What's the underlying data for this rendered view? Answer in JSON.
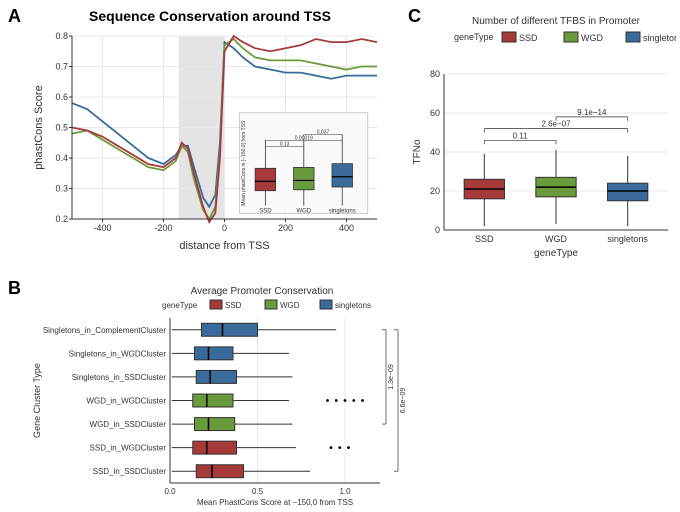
{
  "colors": {
    "ssd": "#a63a3a",
    "wgd": "#6b9a3d",
    "singletons": "#3a6b9a",
    "grid": "#e8e8e8",
    "axis": "#333333",
    "shade": "#d8d8d8",
    "bg": "#ffffff"
  },
  "panelA": {
    "label": "A",
    "title": "Sequence Conservation around TSS",
    "title_fontsize": 14,
    "xlabel": "distance from TSS",
    "ylabel": "phastCons Score",
    "xlim": [
      -500,
      500
    ],
    "ylim": [
      0.2,
      0.8
    ],
    "xticks": [
      -400,
      -200,
      0,
      200,
      400
    ],
    "yticks": [
      0.2,
      0.3,
      0.4,
      0.5,
      0.6,
      0.7,
      0.8
    ],
    "shade_x": [
      -150,
      0
    ],
    "lines": {
      "ssd": [
        [
          -500,
          0.5
        ],
        [
          -450,
          0.49
        ],
        [
          -400,
          0.47
        ],
        [
          -350,
          0.44
        ],
        [
          -300,
          0.41
        ],
        [
          -250,
          0.38
        ],
        [
          -200,
          0.37
        ],
        [
          -160,
          0.4
        ],
        [
          -140,
          0.45
        ],
        [
          -120,
          0.43
        ],
        [
          -100,
          0.35
        ],
        [
          -70,
          0.24
        ],
        [
          -50,
          0.19
        ],
        [
          -30,
          0.22
        ],
        [
          -15,
          0.4
        ],
        [
          0,
          0.75
        ],
        [
          30,
          0.8
        ],
        [
          60,
          0.78
        ],
        [
          100,
          0.76
        ],
        [
          150,
          0.75
        ],
        [
          200,
          0.76
        ],
        [
          250,
          0.77
        ],
        [
          300,
          0.79
        ],
        [
          350,
          0.78
        ],
        [
          400,
          0.78
        ],
        [
          450,
          0.79
        ],
        [
          500,
          0.78
        ]
      ],
      "wgd": [
        [
          -500,
          0.48
        ],
        [
          -450,
          0.49
        ],
        [
          -400,
          0.46
        ],
        [
          -350,
          0.43
        ],
        [
          -300,
          0.4
        ],
        [
          -250,
          0.37
        ],
        [
          -200,
          0.36
        ],
        [
          -160,
          0.39
        ],
        [
          -140,
          0.44
        ],
        [
          -120,
          0.42
        ],
        [
          -100,
          0.33
        ],
        [
          -70,
          0.23
        ],
        [
          -50,
          0.2
        ],
        [
          -30,
          0.24
        ],
        [
          -15,
          0.42
        ],
        [
          0,
          0.77
        ],
        [
          30,
          0.79
        ],
        [
          60,
          0.76
        ],
        [
          100,
          0.73
        ],
        [
          150,
          0.72
        ],
        [
          200,
          0.72
        ],
        [
          250,
          0.72
        ],
        [
          300,
          0.71
        ],
        [
          350,
          0.7
        ],
        [
          400,
          0.69
        ],
        [
          450,
          0.7
        ],
        [
          500,
          0.7
        ]
      ],
      "singletons": [
        [
          -500,
          0.58
        ],
        [
          -450,
          0.56
        ],
        [
          -400,
          0.52
        ],
        [
          -350,
          0.48
        ],
        [
          -300,
          0.44
        ],
        [
          -250,
          0.4
        ],
        [
          -200,
          0.38
        ],
        [
          -160,
          0.41
        ],
        [
          -140,
          0.44
        ],
        [
          -120,
          0.44
        ],
        [
          -100,
          0.37
        ],
        [
          -70,
          0.27
        ],
        [
          -50,
          0.24
        ],
        [
          -30,
          0.28
        ],
        [
          -15,
          0.45
        ],
        [
          0,
          0.78
        ],
        [
          30,
          0.76
        ],
        [
          60,
          0.73
        ],
        [
          100,
          0.7
        ],
        [
          150,
          0.69
        ],
        [
          200,
          0.68
        ],
        [
          250,
          0.68
        ],
        [
          300,
          0.67
        ],
        [
          350,
          0.66
        ],
        [
          400,
          0.67
        ],
        [
          450,
          0.67
        ],
        [
          500,
          0.67
        ]
      ]
    },
    "inset": {
      "ylabel": "Mean phastCons in [−150,0] from TSS",
      "categories": [
        "SSD",
        "WGD",
        "singletons"
      ],
      "ylim": [
        0,
        0.8
      ],
      "boxes": {
        "ssd": {
          "q1": 0.18,
          "med": 0.28,
          "q3": 0.42,
          "lo": 0.02,
          "hi": 0.72
        },
        "wgd": {
          "q1": 0.19,
          "med": 0.29,
          "q3": 0.43,
          "lo": 0.02,
          "hi": 0.74
        },
        "singletons": {
          "q1": 0.22,
          "med": 0.33,
          "q3": 0.47,
          "lo": 0.02,
          "hi": 0.78
        }
      },
      "pvals": [
        {
          "a": 0,
          "b": 1,
          "label": "0.13",
          "y": 0.82
        },
        {
          "a": 0,
          "b": 2,
          "label": "0.00019",
          "y": 0.9
        },
        {
          "a": 1,
          "b": 2,
          "label": "0.037",
          "y": 0.98
        }
      ]
    }
  },
  "panelB": {
    "label": "B",
    "title": "Average Promoter Conservation",
    "title_fontsize": 10,
    "legend_title": "geneType",
    "xlabel": "Mean PhastCons Score at −150,0 from TSS",
    "ylabel": "Gene Cluster Type",
    "xlim": [
      0,
      1.2
    ],
    "xticks": [
      0.0,
      0.5,
      1.0
    ],
    "categories": [
      {
        "name": "Singletons_in_ComplementCluster",
        "color": "singletons",
        "q1": 0.18,
        "med": 0.3,
        "q3": 0.5,
        "lo": 0.01,
        "hi": 0.95
      },
      {
        "name": "Singletons_in_WGDCluster",
        "color": "singletons",
        "q1": 0.14,
        "med": 0.22,
        "q3": 0.36,
        "lo": 0.01,
        "hi": 0.68
      },
      {
        "name": "Singletons_in_SSDCluster",
        "color": "singletons",
        "q1": 0.15,
        "med": 0.23,
        "q3": 0.38,
        "lo": 0.01,
        "hi": 0.7
      },
      {
        "name": "WGD_in_WGDCluster",
        "color": "wgd",
        "q1": 0.13,
        "med": 0.21,
        "q3": 0.36,
        "lo": 0.01,
        "hi": 0.68,
        "outliers": [
          0.9,
          0.95,
          1.0,
          1.05,
          1.1
        ]
      },
      {
        "name": "WGD_in_SSDCluster",
        "color": "wgd",
        "q1": 0.14,
        "med": 0.22,
        "q3": 0.37,
        "lo": 0.01,
        "hi": 0.7
      },
      {
        "name": "SSD_in_WGDCluster",
        "color": "ssd",
        "q1": 0.13,
        "med": 0.21,
        "q3": 0.38,
        "lo": 0.01,
        "hi": 0.72,
        "outliers": [
          0.92,
          0.97,
          1.02
        ]
      },
      {
        "name": "SSD_in_SSDCluster",
        "color": "ssd",
        "q1": 0.15,
        "med": 0.24,
        "q3": 0.42,
        "lo": 0.01,
        "hi": 0.8
      }
    ],
    "pvals": [
      {
        "a": 0,
        "b": 4,
        "label": "1.3e−09"
      },
      {
        "a": 0,
        "b": 6,
        "label": "6.6e−09"
      }
    ]
  },
  "panelC": {
    "label": "C",
    "title": "Number of different TFBS in Promoter",
    "title_fontsize": 10,
    "legend_title": "geneType",
    "xlabel": "geneType",
    "ylabel": "TFNo",
    "ylim": [
      0,
      80
    ],
    "yticks": [
      0,
      20,
      40,
      60,
      80
    ],
    "categories": [
      "SSD",
      "WGD",
      "singletons"
    ],
    "boxes": {
      "ssd": {
        "q1": 16,
        "med": 21,
        "q3": 26,
        "lo": 2,
        "hi": 39
      },
      "wgd": {
        "q1": 17,
        "med": 22,
        "q3": 27,
        "lo": 3,
        "hi": 41
      },
      "singletons": {
        "q1": 15,
        "med": 20,
        "q3": 24,
        "lo": 2,
        "hi": 38
      }
    },
    "pvals": [
      {
        "a": 0,
        "b": 1,
        "label": "0.11",
        "y": 46
      },
      {
        "a": 0,
        "b": 2,
        "label": "2.6e−07",
        "y": 52
      },
      {
        "a": 1,
        "b": 2,
        "label": "9.1e−14",
        "y": 58
      }
    ]
  }
}
